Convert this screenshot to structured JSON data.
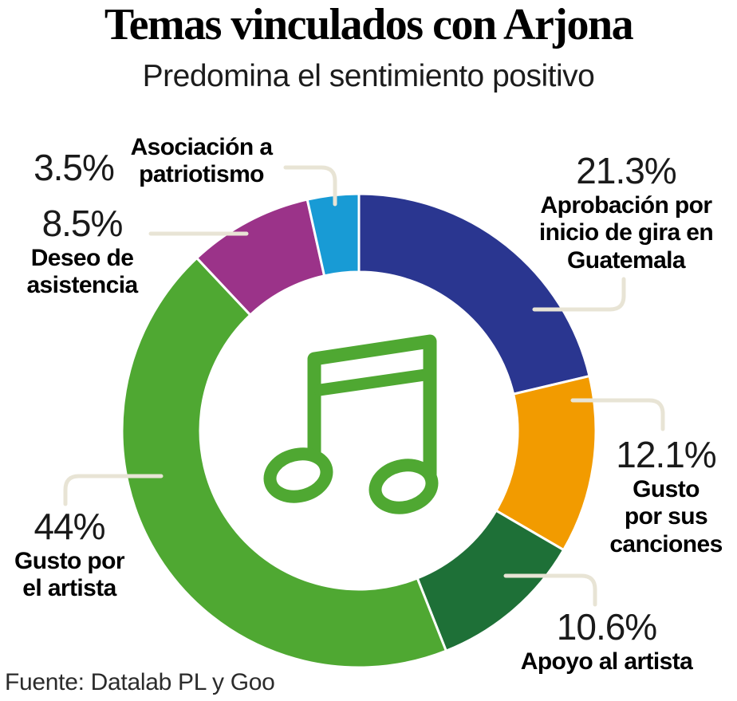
{
  "header": {
    "title": "Temas vinculados con Arjona",
    "subtitle": "Predomina el sentimiento positivo"
  },
  "footer": {
    "source": "Fuente: Datalab PL y Goo"
  },
  "chart_data": {
    "type": "pie",
    "variant": "donut",
    "title": "Temas vinculados con Arjona",
    "subtitle": "Predomina el sentimiento positivo",
    "source": "Fuente: Datalab PL y Goo",
    "units": "percent",
    "total": 100,
    "start_angle_deg": 0,
    "direction": "clockwise",
    "inner_radius_ratio": 0.67,
    "slices": [
      {
        "label": "Aprobación por inicio de gira en Guatemala",
        "label_lines": [
          "Aprobación por",
          "inicio de gira en",
          "Guatemala"
        ],
        "pct_label": "21.3%",
        "value": 21.3,
        "color": "#2a3690"
      },
      {
        "label": "Gusto por sus canciones",
        "label_lines": [
          "Gusto",
          "por sus",
          "canciones"
        ],
        "pct_label": "12.1%",
        "value": 12.1,
        "color": "#f29b00"
      },
      {
        "label": "Apoyo al artista",
        "label_lines": [
          "Apoyo al artista"
        ],
        "pct_label": "10.6%",
        "value": 10.6,
        "color": "#1e7037"
      },
      {
        "label": "Gusto por el artista",
        "label_lines": [
          "Gusto por",
          "el artista"
        ],
        "pct_label": "44%",
        "value": 44,
        "color": "#4fa832"
      },
      {
        "label": "Deseo de asistencia",
        "label_lines": [
          "Deseo de",
          "asistencia"
        ],
        "pct_label": "8.5%",
        "value": 8.5,
        "color": "#9b3389"
      },
      {
        "label": "Asociación a patriotismo",
        "label_lines": [
          "Asociación a",
          "patriotismo"
        ],
        "pct_label": "3.5%",
        "value": 3.5,
        "color": "#189bd5"
      }
    ],
    "gap_color": "#ffffff",
    "leader_line_color": "#e8e4d5",
    "center_icon": "music-note",
    "icon_color": "#4fa832"
  }
}
